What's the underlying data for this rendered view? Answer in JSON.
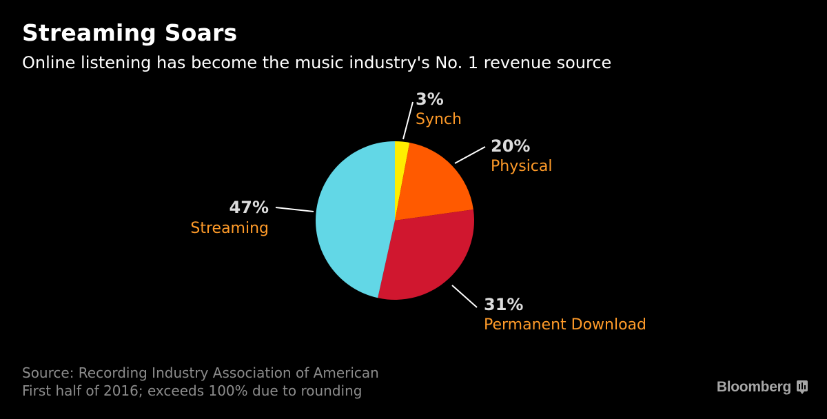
{
  "header": {
    "title": "Streaming Soars",
    "subtitle": "Online listening has become the music industry's No. 1 revenue source"
  },
  "chart_data": {
    "type": "pie",
    "title": "Streaming Soars",
    "subtitle": "Online listening has become the music industry's No. 1 revenue source",
    "start": "12 o'clock, clockwise",
    "slices": [
      {
        "label": "Synch",
        "value": 3,
        "display": "3%",
        "color": "#ffee00"
      },
      {
        "label": "Physical",
        "value": 20,
        "display": "20%",
        "color": "#ff5a00"
      },
      {
        "label": "Permanent Download",
        "value": 31,
        "display": "31%",
        "color": "#d0172f"
      },
      {
        "label": "Streaming",
        "value": 47,
        "display": "47%",
        "color": "#62d7e6"
      }
    ],
    "label_color": "#ff9b29",
    "value_label_color": "#dcdcdc"
  },
  "footer": {
    "source_line1": "Source: Recording Industry Association of American",
    "source_line2": "First half of 2016; exceeds 100% due to rounding",
    "brand": "Bloomberg"
  }
}
